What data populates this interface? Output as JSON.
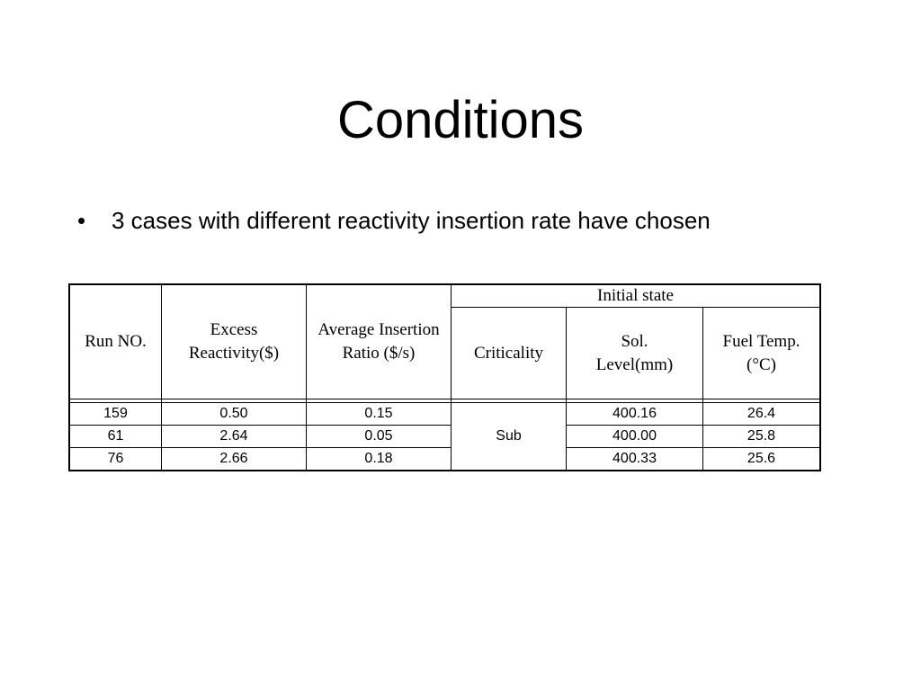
{
  "slide": {
    "title": "Conditions",
    "bullets": [
      "3 cases with different reactivity insertion rate have chosen"
    ]
  },
  "table": {
    "group_header": "Initial state",
    "headers": {
      "run": "Run NO.",
      "excess": "Excess Reactivity($)",
      "average": "Average Insertion Ratio ($/s)",
      "criticality": "Criticality",
      "sol_level": "Sol. Level(mm)",
      "fuel_temp": "Fuel Temp. (°C)"
    },
    "criticality_value": "Sub",
    "rows": [
      {
        "run": "159",
        "excess": "0.50",
        "average": "0.15",
        "sol_level": "400.16",
        "fuel_temp": "26.4"
      },
      {
        "run": "61",
        "excess": "2.64",
        "average": "0.05",
        "sol_level": "400.00",
        "fuel_temp": "25.8"
      },
      {
        "run": "76",
        "excess": "2.66",
        "average": "0.18",
        "sol_level": "400.33",
        "fuel_temp": "25.6"
      }
    ]
  }
}
